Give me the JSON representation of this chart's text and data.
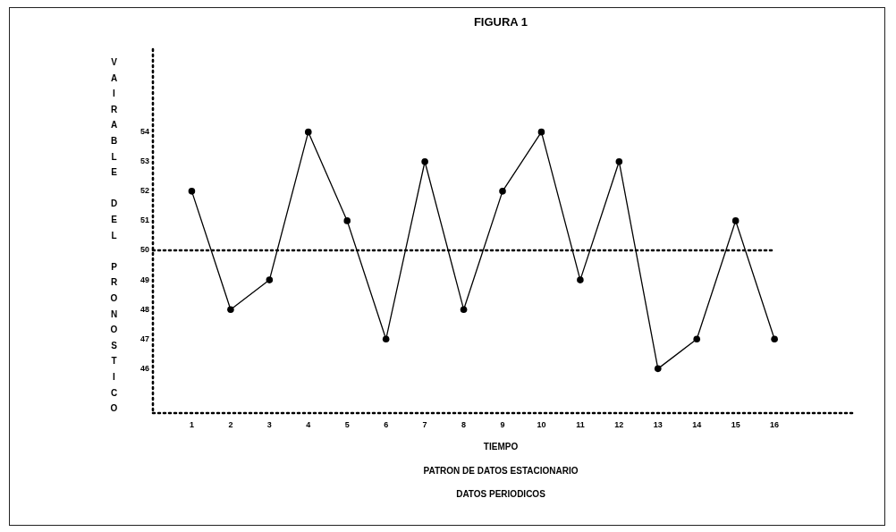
{
  "chart_data": {
    "type": "line",
    "title": "FIGURA 1",
    "xlabel": "TIEMPO",
    "ylabel": "VAIRABLE DEL PRONOSTICO",
    "annotations": [
      "PATRON DE DATOS ESTACIONARIO",
      "DATOS PERIODICOS"
    ],
    "x": [
      1,
      2,
      3,
      4,
      5,
      6,
      7,
      8,
      9,
      10,
      11,
      12,
      13,
      14,
      15,
      16
    ],
    "series": [
      {
        "color": "#000000",
        "values": [
          52,
          48,
          49,
          54,
          51,
          47,
          53,
          48,
          52,
          54,
          49,
          53,
          46,
          47,
          51,
          47
        ]
      }
    ],
    "xlim": [
      0,
      18
    ],
    "xticks": [
      1,
      2,
      3,
      4,
      5,
      6,
      7,
      8,
      9,
      10,
      11,
      12,
      13,
      14,
      15,
      16
    ],
    "ylim": [
      44.5,
      56.8
    ],
    "yticks": [
      46,
      47,
      48,
      49,
      50,
      51,
      52,
      53,
      54
    ],
    "ref_lines": [
      {
        "axis": "y",
        "value": 50,
        "color": "#000000",
        "line_style": "dotted"
      }
    ],
    "grid": false,
    "legend": false,
    "marker": "circle",
    "line_style": "solid"
  }
}
